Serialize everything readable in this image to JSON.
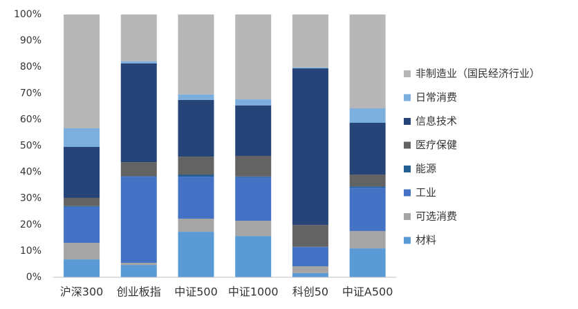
{
  "chart_data": {
    "type": "stacked_bar",
    "categories": [
      "沪深300",
      "创业板指",
      "中证500",
      "中证1000",
      "科创50",
      "中证A500"
    ],
    "series": [
      {
        "name": "材料",
        "color": "#5b9bd5",
        "values": [
          6.8,
          4.7,
          17.3,
          15.7,
          1.6,
          11.0
        ]
      },
      {
        "name": "可选消费",
        "color": "#a5a5a5",
        "values": [
          6.3,
          0.8,
          5.0,
          5.8,
          2.6,
          6.6
        ]
      },
      {
        "name": "工业",
        "color": "#4472c4",
        "values": [
          13.7,
          32.8,
          16.0,
          16.6,
          7.3,
          16.5
        ]
      },
      {
        "name": "能源",
        "color": "#255e91",
        "values": [
          0.3,
          0.2,
          0.8,
          0.3,
          0.1,
          0.5
        ]
      },
      {
        "name": "医疗保健",
        "color": "#636363",
        "values": [
          3.1,
          5.3,
          6.8,
          7.8,
          8.3,
          4.5
        ]
      },
      {
        "name": "信息技术",
        "color": "#264478",
        "values": [
          19.4,
          37.6,
          21.6,
          19.2,
          59.6,
          19.7
        ]
      },
      {
        "name": "日常消费",
        "color": "#7cafdd",
        "values": [
          7.1,
          0.8,
          2.1,
          2.3,
          0.3,
          5.5
        ]
      },
      {
        "name": "非制造业（国民经济行业）",
        "color": "#b7b7b7",
        "values": [
          43.3,
          17.8,
          30.4,
          32.3,
          20.2,
          35.7
        ]
      }
    ],
    "ylim": [
      0,
      100
    ],
    "yticks": [
      {
        "value": 0,
        "label": "0%"
      },
      {
        "value": 10,
        "label": "10%"
      },
      {
        "value": 20,
        "label": "20%"
      },
      {
        "value": 30,
        "label": "30%"
      },
      {
        "value": 40,
        "label": "40%"
      },
      {
        "value": 50,
        "label": "50%"
      },
      {
        "value": 60,
        "label": "60%"
      },
      {
        "value": 70,
        "label": "70%"
      },
      {
        "value": 80,
        "label": "80%"
      },
      {
        "value": 90,
        "label": "90%"
      },
      {
        "value": 100,
        "label": "100%"
      }
    ],
    "legend": "right"
  }
}
